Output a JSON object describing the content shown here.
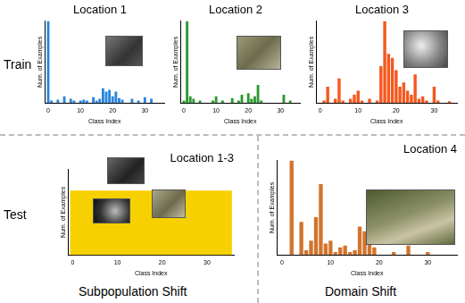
{
  "chart_data": [
    {
      "type": "bar",
      "title": "Location 1",
      "xlabel": "Class Index",
      "ylabel": "Num. of Examples",
      "color": "#2a86dc",
      "x": [
        0,
        1,
        2,
        3,
        4,
        5,
        6,
        7,
        8,
        9,
        10,
        11,
        12,
        13,
        14,
        15,
        16,
        17,
        18,
        19,
        20,
        21,
        22,
        23,
        24,
        25,
        26,
        27,
        28,
        29,
        30,
        31,
        32,
        33,
        34,
        35
      ],
      "values": [
        100,
        3,
        0,
        4,
        0,
        8,
        0,
        5,
        3,
        0,
        3,
        4,
        3,
        0,
        7,
        3,
        5,
        18,
        14,
        16,
        8,
        14,
        6,
        4,
        0,
        0,
        5,
        0,
        3,
        0,
        7,
        0,
        5,
        0,
        0,
        0
      ],
      "xlim": [
        -1,
        36
      ],
      "xticks": [
        0,
        10,
        20,
        30
      ],
      "ylim": [
        0,
        100
      ],
      "grid": false,
      "tick_labels": "x"
    },
    {
      "type": "bar",
      "title": "Location 2",
      "xlabel": "Class Index",
      "ylabel": "Num. of Examples",
      "color": "#2e9a32",
      "x": [
        0,
        1,
        2,
        3,
        4,
        5,
        6,
        7,
        8,
        9,
        10,
        11,
        12,
        13,
        14,
        15,
        16,
        17,
        18,
        19,
        20,
        21,
        22,
        23,
        24,
        25,
        26,
        27,
        28,
        29,
        30,
        31,
        32,
        33,
        34,
        35
      ],
      "values": [
        3,
        100,
        8,
        5,
        0,
        3,
        0,
        0,
        0,
        3,
        8,
        0,
        3,
        0,
        0,
        6,
        0,
        3,
        10,
        0,
        12,
        5,
        8,
        22,
        3,
        0,
        0,
        0,
        0,
        0,
        0,
        10,
        0,
        3,
        0,
        0
      ],
      "xlim": [
        -1,
        36
      ],
      "xticks": [
        0,
        10,
        20,
        30
      ],
      "ylim": [
        0,
        100
      ],
      "grid": false,
      "tick_labels": "x"
    },
    {
      "type": "bar",
      "title": "Location 3",
      "xlabel": "Class Index",
      "ylabel": "Num. of Examples",
      "color": "#f5581e",
      "x": [
        0,
        1,
        2,
        3,
        4,
        5,
        6,
        7,
        8,
        9,
        10,
        11,
        12,
        13,
        14,
        15,
        16,
        17,
        18,
        19,
        20,
        21,
        22,
        23,
        24,
        25,
        26,
        27,
        28,
        29,
        30,
        31,
        32,
        33,
        34,
        35
      ],
      "values": [
        0,
        3,
        20,
        0,
        5,
        30,
        3,
        0,
        5,
        10,
        15,
        3,
        0,
        5,
        0,
        3,
        45,
        100,
        60,
        55,
        40,
        20,
        25,
        15,
        10,
        35,
        5,
        8,
        3,
        0,
        20,
        3,
        0,
        0,
        2,
        0
      ],
      "xlim": [
        -1,
        36
      ],
      "xticks": [
        0,
        10,
        20,
        30
      ],
      "ylim": [
        0,
        100
      ],
      "grid": false,
      "tick_labels": "x"
    },
    {
      "type": "bar",
      "title": "Location 1-3",
      "xlabel": "Class Index",
      "ylabel": "Num. of Examples",
      "color": "#f7d000",
      "x": [
        0,
        1,
        2,
        3,
        4,
        5,
        6,
        7,
        8,
        9,
        10,
        11,
        12,
        13,
        14,
        15,
        16,
        17,
        18,
        19,
        20,
        21,
        22,
        23,
        24,
        25,
        26,
        27,
        28,
        29,
        30,
        31,
        32,
        33,
        34,
        35
      ],
      "values": [
        75,
        75,
        75,
        75,
        75,
        75,
        75,
        75,
        75,
        75,
        75,
        75,
        75,
        75,
        75,
        75,
        75,
        75,
        75,
        75,
        75,
        75,
        75,
        75,
        75,
        75,
        75,
        75,
        75,
        75,
        75,
        75,
        75,
        75,
        75,
        75
      ],
      "xlim": [
        -1,
        36
      ],
      "xticks": [
        0,
        10,
        20,
        30
      ],
      "ylim": [
        0,
        100
      ],
      "grid": false,
      "tick_labels": "x"
    },
    {
      "type": "bar",
      "title": "Location 4",
      "xlabel": "Class Index",
      "ylabel": "Num. of Examples",
      "color": "#d2742e",
      "x": [
        0,
        1,
        2,
        3,
        4,
        5,
        6,
        7,
        8,
        9,
        10,
        11,
        12,
        13,
        14,
        15,
        16,
        17,
        18,
        19,
        20,
        21,
        22,
        23,
        24,
        25,
        26,
        27,
        28,
        29,
        30,
        31,
        32,
        33,
        34,
        35
      ],
      "values": [
        0,
        0,
        100,
        0,
        35,
        5,
        15,
        40,
        75,
        12,
        15,
        3,
        8,
        10,
        3,
        5,
        30,
        25,
        45,
        8,
        0,
        0,
        0,
        3,
        0,
        0,
        10,
        0,
        0,
        0,
        3,
        0,
        0,
        0,
        0,
        0
      ],
      "xlim": [
        -1,
        36
      ],
      "xticks": [
        0,
        10,
        20,
        30
      ],
      "ylim": [
        0,
        100
      ],
      "grid": false,
      "tick_labels": "x"
    }
  ],
  "row_labels": [
    "Train",
    "Test"
  ],
  "captions": [
    "Subpopulation Shift",
    "Domain Shift"
  ]
}
